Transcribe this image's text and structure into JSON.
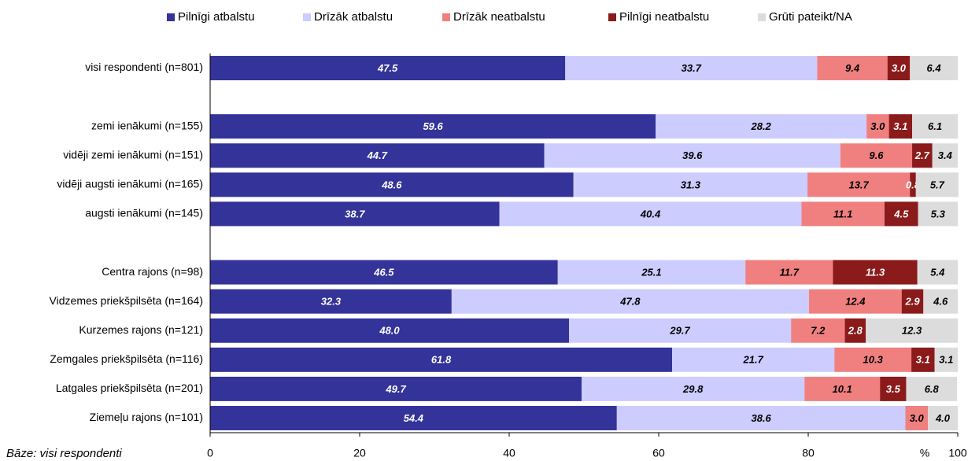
{
  "chart_data": {
    "type": "stacked_bar_horizontal",
    "categories": [
      "visi respondenti (n=801)",
      null,
      "zemi ienākumi (n=155)",
      "vidēji zemi ienākumi (n=151)",
      "vidēji augsti ienākumi (n=165)",
      "augsti ienākumi (n=145)",
      null,
      "Centra rajons (n=98)",
      "Vidzemes priekšpilsēta (n=164)",
      "Kurzemes rajons (n=121)",
      "Zemgales priekšpilsēta (n=116)",
      "Latgales priekšpilsēta (n=201)",
      "Ziemeļu rajons (n=101)"
    ],
    "series": [
      {
        "name": "Pilnīgi atbalstu",
        "color": "#333399",
        "values": [
          47.5,
          null,
          59.6,
          44.7,
          48.6,
          38.7,
          null,
          46.5,
          32.3,
          48.0,
          61.8,
          49.7,
          54.4
        ],
        "value_labels": [
          "47.5",
          null,
          "59.6",
          "44.7",
          "48.6",
          "38.7",
          null,
          "46.5",
          "32.3",
          "48.0",
          "61.8",
          "49.7",
          "54.4"
        ]
      },
      {
        "name": "Drīzāk atbalstu",
        "color": "#ccccff",
        "values": [
          33.7,
          null,
          28.2,
          39.6,
          31.3,
          40.4,
          null,
          25.1,
          47.8,
          29.7,
          21.7,
          29.8,
          38.6
        ],
        "value_labels": [
          "33.7",
          null,
          "28.2",
          "39.6",
          "31.3",
          "40.4",
          null,
          "25.1",
          "47.8",
          "29.7",
          "21.7",
          "29.8",
          "38.6"
        ]
      },
      {
        "name": "Drīzāk neatbalstu",
        "color": "#f08080",
        "values": [
          9.4,
          null,
          3.0,
          9.6,
          13.7,
          11.1,
          null,
          11.7,
          12.4,
          7.2,
          10.3,
          10.1,
          3.0
        ],
        "value_labels": [
          "9.4",
          null,
          "3.0",
          "9.6",
          "13.7",
          "11.1",
          null,
          "11.7",
          "12.4",
          "7.2",
          "10.3",
          "10.1",
          "3.0"
        ]
      },
      {
        "name": "Pilnīgi neatbalstu",
        "color": "#8b1a1a",
        "values": [
          3.0,
          null,
          3.1,
          2.7,
          0.8,
          4.5,
          null,
          11.3,
          2.9,
          2.8,
          3.1,
          3.5,
          null
        ],
        "value_labels": [
          "3.0",
          null,
          "3.1",
          "2.7",
          "0.8",
          "4.5",
          null,
          "11.3",
          "2.9",
          "2.8",
          "3.1",
          "3.5",
          null
        ]
      },
      {
        "name": "Grūti pateikt/NA",
        "color": "#dcdcdc",
        "values": [
          6.4,
          null,
          6.1,
          3.4,
          5.7,
          5.3,
          null,
          5.4,
          4.6,
          12.3,
          3.1,
          6.8,
          4.0
        ],
        "value_labels": [
          "6.4",
          null,
          "6.1",
          "3.4",
          "5.7",
          "5.3",
          null,
          "5.4",
          "4.6",
          "12.3",
          "3.1",
          "6.8",
          "4.0"
        ]
      }
    ],
    "xlim": [
      0,
      100
    ],
    "xticks": [
      0,
      20,
      40,
      60,
      80,
      100
    ],
    "x_unit": "%",
    "footnote": "Bāze: visi respondenti",
    "legend": "top"
  }
}
